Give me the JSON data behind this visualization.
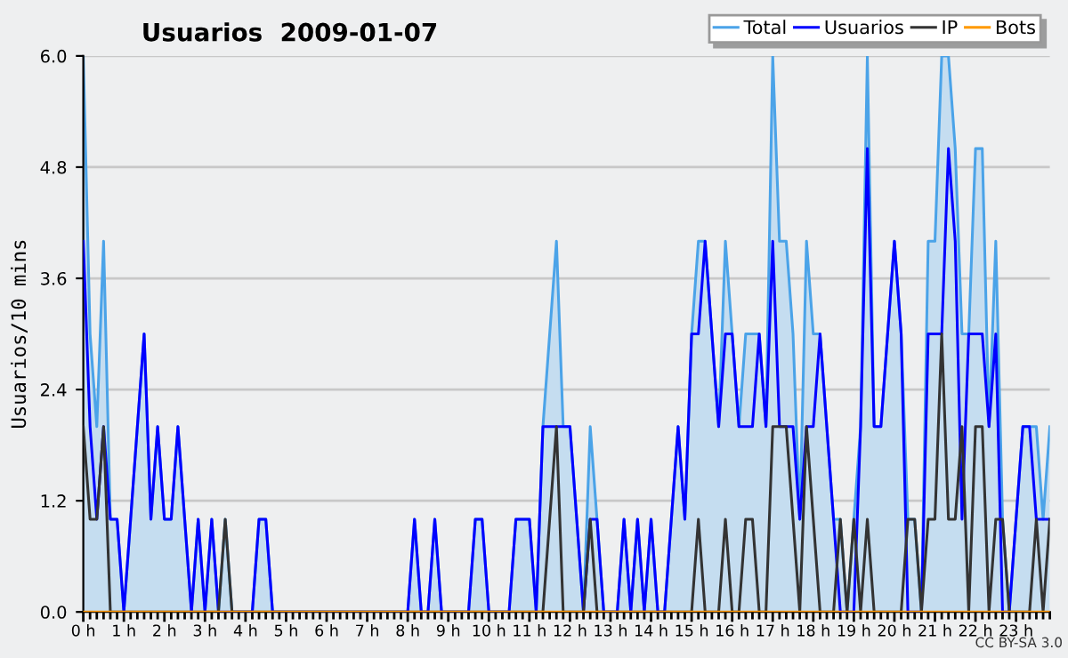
{
  "chart_data": {
    "type": "line",
    "title": "Usuarios  2009-01-07",
    "ylabel": "Usuarios/10 mins",
    "x": [
      0,
      0.167,
      0.333,
      0.5,
      0.667,
      0.833,
      1,
      1.167,
      1.333,
      1.5,
      1.667,
      1.833,
      2,
      2.167,
      2.333,
      2.5,
      2.667,
      2.833,
      3,
      3.167,
      3.333,
      3.5,
      3.667,
      3.833,
      4,
      4.167,
      4.333,
      4.5,
      4.667,
      4.833,
      5,
      5.167,
      5.333,
      5.5,
      5.667,
      5.833,
      6,
      6.167,
      6.333,
      6.5,
      6.667,
      6.833,
      7,
      7.167,
      7.333,
      7.5,
      7.667,
      7.833,
      8,
      8.167,
      8.333,
      8.5,
      8.667,
      8.833,
      9,
      9.167,
      9.333,
      9.5,
      9.667,
      9.833,
      10,
      10.167,
      10.333,
      10.5,
      10.667,
      10.833,
      11,
      11.167,
      11.333,
      11.5,
      11.667,
      11.833,
      12,
      12.167,
      12.333,
      12.5,
      12.667,
      12.833,
      13,
      13.167,
      13.333,
      13.5,
      13.667,
      13.833,
      14,
      14.167,
      14.333,
      14.5,
      14.667,
      14.833,
      15,
      15.167,
      15.333,
      15.5,
      15.667,
      15.833,
      16,
      16.167,
      16.333,
      16.5,
      16.667,
      16.833,
      17,
      17.167,
      17.333,
      17.5,
      17.667,
      17.833,
      18,
      18.167,
      18.333,
      18.5,
      18.667,
      18.833,
      19,
      19.167,
      19.333,
      19.5,
      19.667,
      19.833,
      20,
      20.167,
      20.333,
      20.5,
      20.667,
      20.833,
      21,
      21.167,
      21.333,
      21.5,
      21.667,
      21.833,
      22,
      22.167,
      22.333,
      22.5,
      22.667,
      22.833,
      23,
      23.167,
      23.333,
      23.5,
      23.667,
      23.833
    ],
    "series": [
      {
        "name": "Total",
        "type": "area",
        "color": "#4ba3e8",
        "values": [
          6,
          3,
          2,
          4,
          1,
          1,
          0,
          1,
          2,
          3,
          1,
          2,
          1,
          1,
          2,
          1,
          0,
          1,
          0,
          1,
          0,
          1,
          0,
          0,
          0,
          0,
          1,
          1,
          0,
          0,
          0,
          0,
          0,
          0,
          0,
          0,
          0,
          0,
          0,
          0,
          0,
          0,
          0,
          0,
          0,
          0,
          0,
          0,
          0,
          1,
          0,
          0,
          1,
          0,
          0,
          0,
          0,
          0,
          1,
          1,
          0,
          0,
          0,
          0,
          1,
          1,
          1,
          0,
          2,
          3,
          4,
          2,
          2,
          1,
          0,
          2,
          1,
          0,
          0,
          0,
          1,
          0,
          1,
          0,
          1,
          0,
          0,
          1,
          2,
          1,
          3,
          4,
          4,
          3,
          2,
          4,
          3,
          2,
          3,
          3,
          3,
          2,
          6,
          4,
          4,
          3,
          1,
          4,
          3,
          3,
          2,
          1,
          1,
          0,
          1,
          2,
          6,
          2,
          2,
          3,
          4,
          3,
          1,
          1,
          0,
          4,
          4,
          6,
          6,
          5,
          3,
          3,
          5,
          5,
          2,
          4,
          1,
          0,
          1,
          2,
          2,
          2,
          1,
          2
        ]
      },
      {
        "name": "Usuarios",
        "color": "#0000ff",
        "values": [
          4,
          2,
          1,
          2,
          1,
          1,
          0,
          1,
          2,
          3,
          1,
          2,
          1,
          1,
          2,
          1,
          0,
          1,
          0,
          1,
          0,
          0,
          0,
          0,
          0,
          0,
          1,
          1,
          0,
          0,
          0,
          0,
          0,
          0,
          0,
          0,
          0,
          0,
          0,
          0,
          0,
          0,
          0,
          0,
          0,
          0,
          0,
          0,
          0,
          1,
          0,
          0,
          1,
          0,
          0,
          0,
          0,
          0,
          1,
          1,
          0,
          0,
          0,
          0,
          1,
          1,
          1,
          0,
          2,
          2,
          2,
          2,
          2,
          1,
          0,
          1,
          1,
          0,
          0,
          0,
          1,
          0,
          1,
          0,
          1,
          0,
          0,
          1,
          2,
          1,
          3,
          3,
          4,
          3,
          2,
          3,
          3,
          2,
          2,
          2,
          3,
          2,
          4,
          2,
          2,
          2,
          1,
          2,
          2,
          3,
          2,
          1,
          0,
          0,
          0,
          2,
          5,
          2,
          2,
          3,
          4,
          3,
          0,
          0,
          0,
          3,
          3,
          3,
          5,
          4,
          1,
          3,
          3,
          3,
          2,
          3,
          0,
          0,
          1,
          2,
          2,
          1,
          1,
          1
        ]
      },
      {
        "name": "IP",
        "color": "#333333",
        "values": [
          2,
          1,
          1,
          2,
          0,
          0,
          0,
          0,
          0,
          0,
          0,
          0,
          0,
          0,
          0,
          0,
          0,
          0,
          0,
          0,
          0,
          1,
          0,
          0,
          0,
          0,
          0,
          0,
          0,
          0,
          0,
          0,
          0,
          0,
          0,
          0,
          0,
          0,
          0,
          0,
          0,
          0,
          0,
          0,
          0,
          0,
          0,
          0,
          0,
          0,
          0,
          0,
          0,
          0,
          0,
          0,
          0,
          0,
          0,
          0,
          0,
          0,
          0,
          0,
          0,
          0,
          0,
          0,
          0,
          1,
          2,
          0,
          0,
          0,
          0,
          1,
          0,
          0,
          0,
          0,
          0,
          0,
          0,
          0,
          0,
          0,
          0,
          0,
          0,
          0,
          0,
          1,
          0,
          0,
          0,
          1,
          0,
          0,
          1,
          1,
          0,
          0,
          2,
          2,
          2,
          1,
          0,
          2,
          1,
          0,
          0,
          0,
          1,
          0,
          1,
          0,
          1,
          0,
          0,
          0,
          0,
          0,
          1,
          1,
          0,
          1,
          1,
          3,
          1,
          1,
          2,
          0,
          2,
          2,
          0,
          1,
          1,
          0,
          0,
          0,
          0,
          1,
          0,
          1
        ]
      },
      {
        "name": "Bots",
        "color": "#ff9900",
        "values": [
          0,
          0,
          0,
          0,
          0,
          0,
          0,
          0,
          0,
          0,
          0,
          0,
          0,
          0,
          0,
          0,
          0,
          0,
          0,
          0,
          0,
          0,
          0,
          0,
          0,
          0,
          0,
          0,
          0,
          0,
          0,
          0,
          0,
          0,
          0,
          0,
          0,
          0,
          0,
          0,
          0,
          0,
          0,
          0,
          0,
          0,
          0,
          0,
          0,
          0,
          0,
          0,
          0,
          0,
          0,
          0,
          0,
          0,
          0,
          0,
          0,
          0,
          0,
          0,
          0,
          0,
          0,
          0,
          0,
          0,
          0,
          0,
          0,
          0,
          0,
          0,
          0,
          0,
          0,
          0,
          0,
          0,
          0,
          0,
          0,
          0,
          0,
          0,
          0,
          0,
          0,
          0,
          0,
          0,
          0,
          0,
          0,
          0,
          0,
          0,
          0,
          0,
          0,
          0,
          0,
          0,
          0,
          0,
          0,
          0,
          0,
          0,
          0,
          0,
          0,
          0,
          0,
          0,
          0,
          0,
          0,
          0,
          0,
          0,
          0,
          0,
          0,
          0,
          0,
          0,
          0,
          0,
          0,
          0,
          0,
          0,
          0,
          0,
          0,
          0,
          0,
          0,
          0,
          0
        ]
      }
    ],
    "xlim": [
      0,
      23.833
    ],
    "xticks": [
      {
        "value": 0,
        "label": "0 h"
      },
      {
        "value": 1,
        "label": "1 h"
      },
      {
        "value": 2,
        "label": "2 h"
      },
      {
        "value": 3,
        "label": "3 h"
      },
      {
        "value": 4,
        "label": "4 h"
      },
      {
        "value": 5,
        "label": "5 h"
      },
      {
        "value": 6,
        "label": "6 h"
      },
      {
        "value": 7,
        "label": "7 h"
      },
      {
        "value": 8,
        "label": "8 h"
      },
      {
        "value": 9,
        "label": "9 h"
      },
      {
        "value": 10,
        "label": "10 h"
      },
      {
        "value": 11,
        "label": "11 h"
      },
      {
        "value": 12,
        "label": "12 h"
      },
      {
        "value": 13,
        "label": "13 h"
      },
      {
        "value": 14,
        "label": "14 h"
      },
      {
        "value": 15,
        "label": "15 h"
      },
      {
        "value": 16,
        "label": "16 h"
      },
      {
        "value": 17,
        "label": "17 h"
      },
      {
        "value": 18,
        "label": "18 h"
      },
      {
        "value": 19,
        "label": "19 h"
      },
      {
        "value": 20,
        "label": "20 h"
      },
      {
        "value": 21,
        "label": "21 h"
      },
      {
        "value": 22,
        "label": "22 h"
      },
      {
        "value": 23,
        "label": "23 h"
      }
    ],
    "ylim": [
      0,
      6
    ],
    "yticks": [
      {
        "value": 0,
        "label": "0.0"
      },
      {
        "value": 1.2,
        "label": "1.2"
      },
      {
        "value": 2.4,
        "label": "2.4"
      },
      {
        "value": 3.6,
        "label": "3.6"
      },
      {
        "value": 4.8,
        "label": "4.8"
      },
      {
        "value": 6,
        "label": "6.0"
      }
    ],
    "grid": "y",
    "legend": "top right",
    "marker": "none",
    "line_style": "solid",
    "annotations": [
      "CC BY-SA 3.0"
    ]
  }
}
